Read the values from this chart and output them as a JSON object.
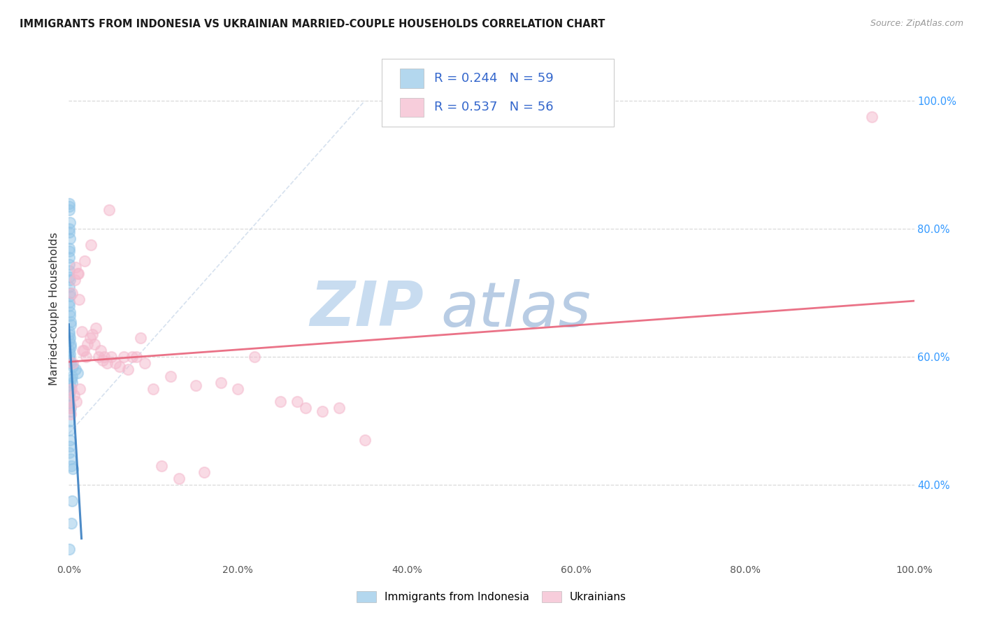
{
  "title": "IMMIGRANTS FROM INDONESIA VS UKRAINIAN MARRIED-COUPLE HOUSEHOLDS CORRELATION CHART",
  "source": "Source: ZipAtlas.com",
  "ylabel": "Married-couple Households",
  "legend_indonesia": "Immigrants from Indonesia",
  "legend_ukrainians": "Ukrainians",
  "R_indonesia": 0.244,
  "N_indonesia": 59,
  "R_ukrainians": 0.537,
  "N_ukrainians": 56,
  "xlim": [
    0.0,
    100.0
  ],
  "ylim": [
    28.0,
    107.0
  ],
  "color_indonesia": "#93c6e8",
  "color_ukrainians": "#f4b8cc",
  "color_indonesia_line": "#3a7fc1",
  "color_ukrainians_line": "#e8637a",
  "color_diag": "#c5d5e8",
  "watermark_zip": "ZIP",
  "watermark_atlas": "atlas",
  "watermark_color_zip": "#c8dcf0",
  "watermark_color_atlas": "#b8cce4",
  "ytick_values": [
    40.0,
    60.0,
    80.0,
    100.0
  ],
  "xtick_values": [
    0.0,
    20.0,
    40.0,
    60.0,
    80.0,
    100.0
  ],
  "indo_x": [
    0.05,
    0.08,
    0.05,
    0.1,
    0.05,
    0.08,
    0.12,
    0.05,
    0.08,
    0.05,
    0.05,
    0.08,
    0.05,
    0.1,
    0.08,
    0.12,
    0.15,
    0.05,
    0.08,
    0.1,
    0.15,
    0.2,
    0.25,
    0.05,
    0.08,
    0.1,
    0.05,
    0.2,
    0.25,
    0.08,
    0.15,
    0.05,
    0.1,
    0.25,
    0.5,
    0.8,
    1.0,
    0.4,
    0.3,
    0.35,
    0.1,
    0.08,
    0.15,
    0.05,
    0.08,
    0.1,
    0.2,
    0.15,
    0.08,
    0.05,
    0.1,
    0.15,
    0.05,
    0.25,
    0.3,
    0.45,
    0.35,
    0.3,
    0.08
  ],
  "indo_y": [
    84.0,
    83.5,
    83.0,
    81.0,
    80.0,
    79.5,
    78.5,
    77.0,
    76.5,
    75.5,
    74.5,
    73.5,
    72.5,
    72.0,
    71.0,
    70.0,
    69.5,
    68.5,
    68.0,
    67.0,
    66.5,
    65.5,
    65.0,
    64.0,
    63.5,
    63.0,
    62.5,
    62.0,
    61.5,
    61.0,
    60.5,
    60.0,
    59.5,
    59.0,
    58.5,
    58.0,
    57.5,
    57.0,
    56.5,
    56.0,
    55.5,
    55.0,
    54.5,
    54.0,
    53.0,
    52.5,
    52.0,
    51.5,
    50.0,
    48.5,
    47.0,
    46.0,
    45.0,
    44.0,
    43.0,
    42.5,
    37.5,
    34.0,
    30.0
  ],
  "ukr_x": [
    0.08,
    0.15,
    0.25,
    0.5,
    0.8,
    1.0,
    1.2,
    1.5,
    1.8,
    2.0,
    2.5,
    3.0,
    3.5,
    4.0,
    4.5,
    5.0,
    6.0,
    7.0,
    8.0,
    10.0,
    12.0,
    15.0,
    18.0,
    20.0,
    25.0,
    28.0,
    30.0,
    35.0,
    0.3,
    0.6,
    0.9,
    1.3,
    1.6,
    2.2,
    2.8,
    3.2,
    3.8,
    4.2,
    5.5,
    6.5,
    7.5,
    9.0,
    11.0,
    13.0,
    16.0,
    22.0,
    27.0,
    32.0,
    0.4,
    0.7,
    1.1,
    1.9,
    2.6,
    4.8,
    8.5,
    95.0
  ],
  "ukr_y": [
    53.0,
    52.0,
    51.0,
    59.0,
    74.0,
    73.0,
    69.0,
    64.0,
    61.0,
    60.0,
    63.0,
    62.0,
    60.0,
    59.5,
    59.0,
    60.0,
    58.5,
    58.0,
    60.0,
    55.0,
    57.0,
    55.5,
    56.0,
    55.0,
    53.0,
    52.0,
    51.5,
    47.0,
    55.0,
    54.0,
    53.0,
    55.0,
    61.0,
    62.0,
    63.5,
    64.5,
    61.0,
    60.0,
    59.0,
    60.0,
    60.0,
    59.0,
    43.0,
    41.0,
    42.0,
    60.0,
    53.0,
    52.0,
    70.0,
    72.0,
    73.0,
    75.0,
    77.5,
    83.0,
    63.0,
    97.5
  ]
}
